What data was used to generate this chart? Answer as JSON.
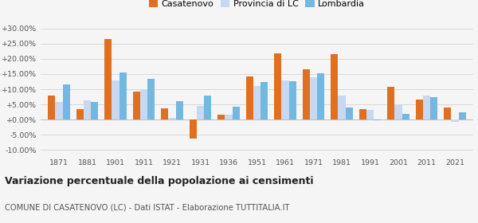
{
  "years": [
    1871,
    1881,
    1901,
    1911,
    1921,
    1931,
    1936,
    1951,
    1961,
    1971,
    1981,
    1991,
    2001,
    2011,
    2021
  ],
  "casatenovo": [
    7.9,
    3.5,
    26.5,
    9.2,
    3.8,
    -6.2,
    1.5,
    14.2,
    21.9,
    16.5,
    21.6,
    3.5,
    10.8,
    6.5,
    4.0
  ],
  "provincia_lc": [
    5.9,
    6.4,
    12.8,
    9.7,
    0.6,
    4.4,
    1.5,
    11.1,
    12.8,
    13.8,
    7.9,
    3.2,
    5.0,
    8.0,
    -0.8
  ],
  "lombardia": [
    11.6,
    5.7,
    15.6,
    13.4,
    6.1,
    7.8,
    4.3,
    12.3,
    12.5,
    15.3,
    4.0,
    -0.3,
    2.0,
    7.3,
    2.5
  ],
  "color_casatenovo": "#e07020",
  "color_provincia": "#c8d8f0",
  "color_lombardia": "#72b8e0",
  "title": "Variazione percentuale della popolazione ai censimenti",
  "subtitle": "COMUNE DI CASATENOVO (LC) - Dati ISTAT - Elaborazione TUTTITALIA.IT",
  "legend_casatenovo": "Casatenovo",
  "legend_provincia": "Provincia di LC",
  "legend_lombardia": "Lombardia",
  "ylim": [
    -12,
    32
  ],
  "yticks": [
    -10,
    -5,
    0,
    5,
    10,
    15,
    20,
    25,
    30
  ],
  "background_color": "#f5f5f5",
  "grid_color": "#d8d8d8"
}
